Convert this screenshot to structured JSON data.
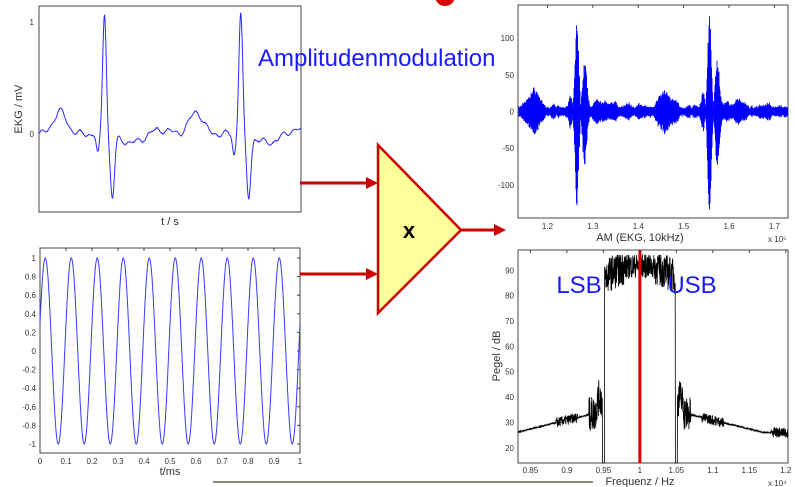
{
  "slide": {
    "heading": "Amplitudenmodulation",
    "multiplier_symbol": "x",
    "colors": {
      "heading": "#1a1aff",
      "arrow": "#cc0000",
      "triangle_fill": "#ffff99",
      "signal": "#0000ff",
      "spectrum": "#000000",
      "carrier_line": "#dd0000"
    }
  },
  "plots": {
    "ekg": {
      "ylabel": "EKG / mV",
      "xlabel": "t / s",
      "yticks": [
        "1",
        "0"
      ],
      "yrange": [
        -0.8,
        1.15
      ]
    },
    "carrier": {
      "xlabel": "t/ms",
      "yticks": [
        "1",
        "0.8",
        "0.6",
        "0.4",
        "0.2",
        "0",
        "-0.2",
        "-0.4",
        "-0.6",
        "-0.8",
        "-1"
      ],
      "xticks": [
        "0",
        "0.1",
        "0.2",
        "0.3",
        "0.4",
        "0.5",
        "0.6",
        "0.7",
        "0.8",
        "0.9",
        "1"
      ],
      "periods": 10
    },
    "am": {
      "xlabel": "AM (EKG, 10kHz)",
      "xexp": "x 10⁵",
      "yticks": [
        "100",
        "50",
        "0",
        "-50",
        "-100"
      ],
      "xticks": [
        "1.2",
        "1.3",
        "1.4",
        "1.5",
        "1.6",
        "1.7"
      ],
      "xrange": [
        1.135,
        1.73
      ],
      "yrange": [
        -145,
        145
      ]
    },
    "spectrum": {
      "xlabel": "Frequenz / Hz",
      "ylabel": "Pegel / dB",
      "xexp": "x 10⁴",
      "yticks": [
        "90",
        "80",
        "70",
        "60",
        "50",
        "40",
        "30",
        "20"
      ],
      "xticks": [
        "0.85",
        "0.9",
        "0.95",
        "1",
        "1.05",
        "1.1",
        "1.15",
        "1.2"
      ],
      "xrange": [
        0.833,
        1.203
      ],
      "yrange": [
        14,
        98
      ],
      "lsb_label": "LSB",
      "usb_label": "USB",
      "carrier_freq": 1.0
    }
  }
}
